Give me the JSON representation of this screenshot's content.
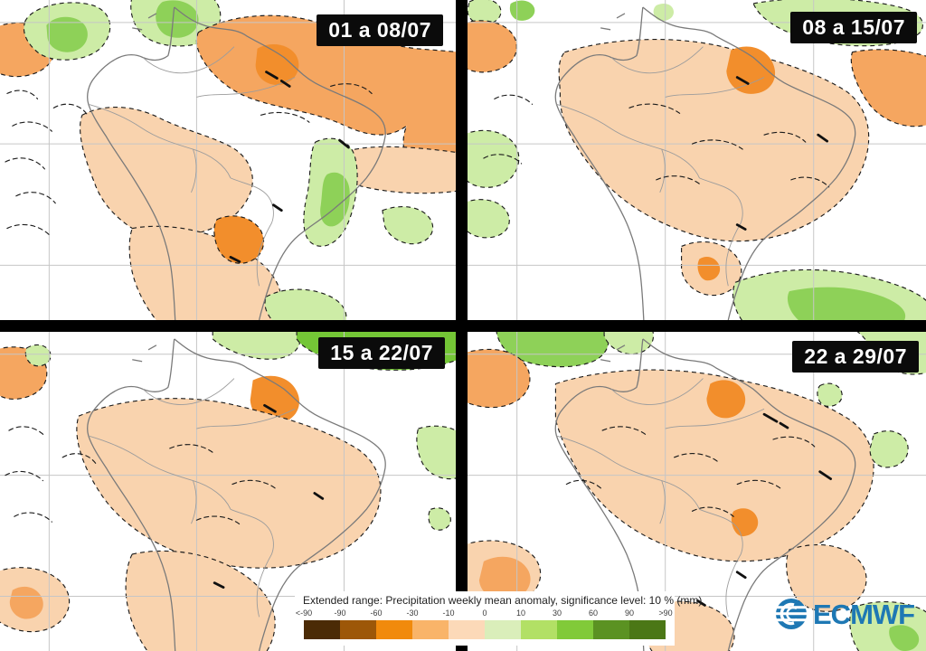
{
  "panels": [
    {
      "label": "01 a 08/07"
    },
    {
      "label": "08 a 15/07"
    },
    {
      "label": "15 a 22/07"
    },
    {
      "label": "22 a 29/07"
    }
  ],
  "legend": {
    "title": "Extended range: Precipitation weekly mean anomaly, significance level: 10 % (mm)",
    "ticks": [
      "<-90",
      "-90",
      "-60",
      "-30",
      "-10",
      "0",
      "10",
      "30",
      "60",
      "90",
      ">90"
    ],
    "colors": [
      "#4b2b06",
      "#9d5708",
      "#f18a0c",
      "#f9b469",
      "#fcd9b8",
      "#daeeba",
      "#b2e065",
      "#81ca39",
      "#5b9222",
      "#4b7716"
    ]
  },
  "logo": {
    "text": "ECMWF",
    "color": "#1e78b4"
  },
  "map_colors": {
    "peach": "#f9d3ae",
    "orange": "#f5a660",
    "deep_orange": "#f28e2c",
    "light_green": "#cdeca6",
    "green": "#8ed158",
    "strong_green": "#74c636",
    "coast": "#7a7a7a",
    "border": "#9c9c9c",
    "graticule": "#c6c6c6",
    "contour": "#1c1c1c"
  }
}
